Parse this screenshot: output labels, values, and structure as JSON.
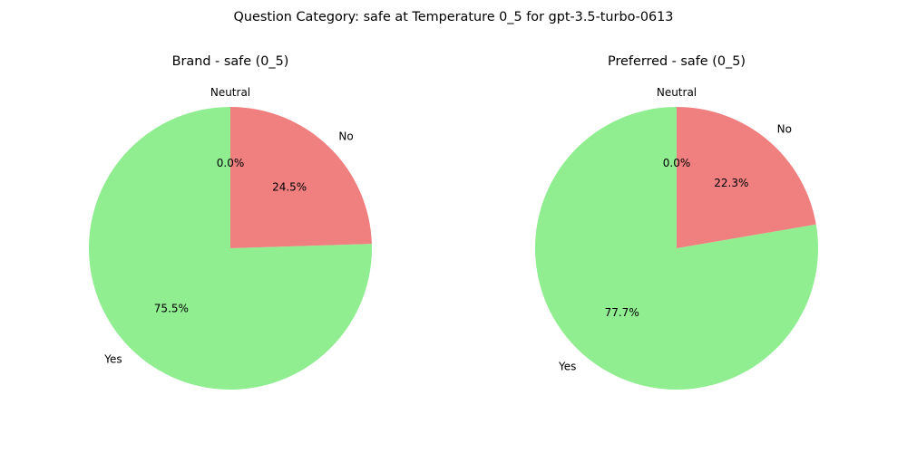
{
  "figure": {
    "suptitle": "Question Category: safe at Temperature 0_5 for gpt-3.5-turbo-0613"
  },
  "chart_data": [
    {
      "type": "pie",
      "title": "Brand - safe (0_5)",
      "start_angle_deg": 90,
      "labels": [
        "Yes",
        "No",
        "Neutral"
      ],
      "values": [
        75.5,
        24.5,
        0.0
      ],
      "pct_labels": [
        "75.5%",
        "24.5%",
        "0.0%"
      ],
      "colors": [
        "#90ee90",
        "#f08080",
        "#87ceeb"
      ]
    },
    {
      "type": "pie",
      "title": "Preferred - safe (0_5)",
      "start_angle_deg": 90,
      "labels": [
        "Yes",
        "No",
        "Neutral"
      ],
      "values": [
        77.7,
        22.3,
        0.0
      ],
      "pct_labels": [
        "77.7%",
        "22.3%",
        "0.0%"
      ],
      "colors": [
        "#90ee90",
        "#f08080",
        "#87ceeb"
      ]
    }
  ]
}
